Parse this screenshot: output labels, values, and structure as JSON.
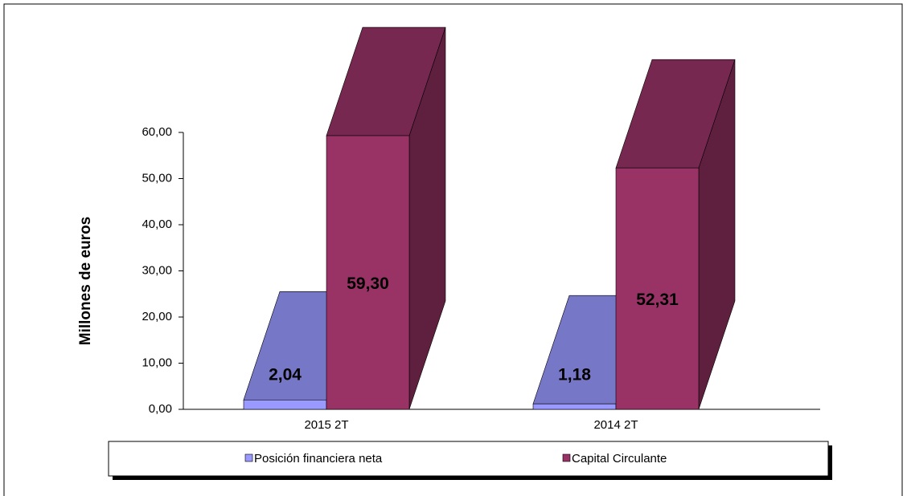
{
  "chart_data": {
    "type": "bar3d",
    "y_label": "Millones de euros",
    "categories": [
      "2015 2T",
      "2014 2T"
    ],
    "series": [
      {
        "name": "Posición financiera neta",
        "color": "#9999ff",
        "values": [
          2.04,
          1.18
        ],
        "value_labels": [
          "2,04",
          "1,18"
        ]
      },
      {
        "name": "Capital Circulante",
        "color": "#993366",
        "values": [
          59.3,
          52.31
        ],
        "value_labels": [
          "59,30",
          "52,31"
        ]
      }
    ],
    "ylim": [
      0,
      60
    ],
    "yticks": [
      {
        "value": 0,
        "label": "0,00"
      },
      {
        "value": 10,
        "label": "10,00"
      },
      {
        "value": 20,
        "label": "20,00"
      },
      {
        "value": 30,
        "label": "30,00"
      },
      {
        "value": 40,
        "label": "40,00"
      },
      {
        "value": 50,
        "label": "50,00"
      },
      {
        "value": 60,
        "label": "60,00"
      }
    ],
    "legend": "bottom"
  }
}
